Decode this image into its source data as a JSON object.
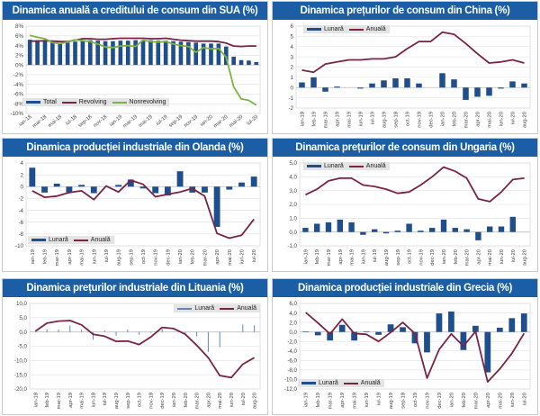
{
  "colors": {
    "title_bg": "#1b5ea6",
    "bar": "#1f4e8c",
    "annual": "#7b2346",
    "revolving": "#7b2346",
    "nonrevolving": "#7cb342",
    "thin_bar": "#5b87c5",
    "grid": "#d9d9d9"
  },
  "chart_data": [
    {
      "type": "bar+line",
      "title": "Dinamica anuală a creditului de consum din SUA (%)",
      "legend_position": "bottom-left",
      "ylim": [
        -10,
        8
      ],
      "yticks": [
        8,
        6,
        4,
        2,
        0,
        -2,
        -4,
        -6,
        -8,
        -10
      ],
      "ytick_labels": [
        "8%",
        "6%",
        "4%",
        "2%",
        "0%",
        "-2%",
        "-4%",
        "-6%",
        "-8%",
        "-10%"
      ],
      "label_step": 2,
      "x_label_rotation": "diagonal",
      "x_labels": [
        "ian-18",
        "mar-18",
        "mai-18",
        "iul-18",
        "sep-18",
        "nov-18",
        "ian-19",
        "mar-19",
        "mai-19",
        "iul-19",
        "sep-19",
        "nov-19",
        "ian-20",
        "mar-20",
        "mai-20",
        "iul-20"
      ],
      "series": [
        {
          "name": "Total",
          "kind": "bar",
          "color": "#1f4e8c",
          "values": [
            5.2,
            5.1,
            4.9,
            4.7,
            4.5,
            4.6,
            4.8,
            5.0,
            5.1,
            5.0,
            4.9,
            4.9,
            5.0,
            5.0,
            5.1,
            5.1,
            5.1,
            5.0,
            5.0,
            4.9,
            4.8,
            4.7,
            4.6,
            4.4,
            4.4,
            4.4,
            3.8,
            1.7,
            1.0,
            0.9,
            0.6
          ]
        },
        {
          "name": "Revolving",
          "kind": "line",
          "color": "#7b2346",
          "values": [
            4.9,
            4.9,
            5.0,
            4.9,
            4.8,
            4.8,
            5.1,
            5.4,
            5.4,
            5.3,
            5.3,
            5.4,
            5.5,
            5.5,
            5.5,
            5.5,
            5.4,
            5.4,
            5.5,
            5.3,
            5.1,
            5.0,
            4.9,
            4.9,
            4.9,
            4.8,
            4.5,
            3.9,
            3.8,
            3.9,
            3.9
          ]
        },
        {
          "name": "Nonrevolving",
          "kind": "line",
          "color": "#7cb342",
          "values": [
            6.1,
            5.7,
            5.4,
            4.6,
            4.4,
            4.7,
            5.2,
            5.0,
            4.8,
            4.3,
            3.7,
            3.6,
            3.9,
            4.0,
            3.8,
            5.1,
            4.8,
            4.7,
            4.8,
            4.3,
            4.0,
            3.8,
            2.6,
            3.6,
            3.3,
            3.4,
            1.6,
            -4.5,
            -7.0,
            -7.3,
            -8.3
          ]
        }
      ]
    },
    {
      "type": "bar+line",
      "title": "Dinamica prețurilor de consum din China (%)",
      "legend_position": "top-left",
      "ylim": [
        -2,
        6
      ],
      "yticks": [
        6,
        5,
        4,
        3,
        2,
        1,
        0,
        -1,
        -2
      ],
      "ytick_labels": [
        "6",
        "5",
        "4",
        "3",
        "2",
        "1",
        "0",
        "-1",
        "-2"
      ],
      "label_step": 1,
      "x_label_rotation": "vertical",
      "x_labels": [
        "ian-19",
        "feb-19",
        "mar-19",
        "apr-19",
        "mai-19",
        "iun-19",
        "iul-19",
        "aug-19",
        "sep-19",
        "oct-19",
        "nov-19",
        "dec-19",
        "ian-20",
        "feb-20",
        "mar-20",
        "apr-20",
        "mai-20",
        "iun-20",
        "iul-20",
        "aug-20"
      ],
      "series": [
        {
          "name": "Lunară",
          "kind": "bar",
          "color": "#1f4e8c",
          "values": [
            0.5,
            1.0,
            -0.4,
            0.1,
            0,
            -0.1,
            0.4,
            0.7,
            0.9,
            0.9,
            0.4,
            0,
            1.4,
            0.8,
            -1.2,
            -0.9,
            -0.8,
            -0.1,
            0.6,
            0.4
          ]
        },
        {
          "name": "Anuală",
          "kind": "line",
          "color": "#7b2346",
          "values": [
            1.7,
            1.5,
            2.3,
            2.5,
            2.7,
            2.7,
            2.8,
            2.8,
            3.0,
            3.8,
            4.5,
            4.5,
            5.4,
            5.2,
            4.3,
            3.3,
            2.4,
            2.5,
            2.7,
            2.4
          ]
        }
      ]
    },
    {
      "type": "bar+line",
      "title": "Dinamica producției industriale din Olanda (%)",
      "legend_position": "bottom-left",
      "ylim": [
        -10,
        4
      ],
      "yticks": [
        4,
        2,
        0,
        -2,
        -4,
        -6,
        -8,
        -10
      ],
      "ytick_labels": [
        "4",
        "2",
        "0",
        "-2",
        "-4",
        "-6",
        "-8",
        "-10"
      ],
      "label_step": 1,
      "x_label_rotation": "vertical",
      "x_labels": [
        "ian-19",
        "feb-19",
        "mar-19",
        "apr-19",
        "mai-19",
        "iun-19",
        "iul-19",
        "aug-19",
        "sep-19",
        "oct-19",
        "nov-19",
        "dec-19",
        "ian-20",
        "feb-20",
        "mar-20",
        "apr-20",
        "mai-20",
        "iun-20",
        "iul-20"
      ],
      "series": [
        {
          "name": "Lunară",
          "kind": "bar",
          "color": "#1f4e8c",
          "values": [
            3.2,
            -1.0,
            0.5,
            -1.0,
            0.3,
            -1.1,
            0,
            0.3,
            1.2,
            -0.3,
            -1.1,
            -1.5,
            2.6,
            -1.0,
            -1.0,
            -6.8,
            -0.5,
            0.7,
            1.7
          ]
        },
        {
          "name": "Anuală",
          "kind": "line",
          "color": "#7b2346",
          "values": [
            -0.7,
            -1.8,
            -1.6,
            -1.0,
            -0.7,
            -2.2,
            0.1,
            -0.9,
            1.1,
            0.4,
            -1.7,
            -1.3,
            -0.9,
            -0.3,
            -1.6,
            -7.9,
            -8.7,
            -8.2,
            -5.5
          ]
        }
      ]
    },
    {
      "type": "bar+line",
      "title": "Dinamica prețurilor de consum din Ungaria (%)",
      "legend_position": "top-left",
      "ylim": [
        -1,
        5
      ],
      "yticks": [
        5,
        4,
        3,
        2,
        1,
        0,
        -1
      ],
      "ytick_labels": [
        "5,0",
        "4,0",
        "3,0",
        "2,0",
        "1,0",
        "0,0",
        "-1,0"
      ],
      "label_step": 1,
      "x_label_rotation": "vertical",
      "x_labels": [
        "ian-19",
        "feb-19",
        "mar-19",
        "apr-19",
        "mai-19",
        "iun-19",
        "iul-19",
        "aug-19",
        "sep-19",
        "oct-19",
        "nov-19",
        "dec-19",
        "ian-20",
        "feb-20",
        "mar-20",
        "apr-20",
        "mai-20",
        "iun-20",
        "iul-20",
        "aug-20"
      ],
      "series": [
        {
          "name": "Lunară",
          "kind": "bar",
          "color": "#1f4e8c",
          "values": [
            0.3,
            0.6,
            0.7,
            0.9,
            0.7,
            -0.2,
            0.2,
            -0.1,
            0.1,
            0.6,
            0.1,
            0.3,
            0.9,
            0.3,
            0.2,
            -0.6,
            0.4,
            0.4,
            1.1,
            0
          ]
        },
        {
          "name": "Anuală",
          "kind": "line",
          "color": "#7b2346",
          "values": [
            2.7,
            3.1,
            3.7,
            3.9,
            3.9,
            3.4,
            3.3,
            3.1,
            2.8,
            2.9,
            3.4,
            4.0,
            4.7,
            4.4,
            3.9,
            2.4,
            2.2,
            2.9,
            3.8,
            3.9
          ]
        }
      ]
    },
    {
      "type": "bar+line",
      "title": "Dinamica prețurilor industriale din Lituania (%)",
      "legend_position": "top-right",
      "ylim": [
        -20,
        10
      ],
      "yticks": [
        10,
        5,
        0,
        -5,
        -10,
        -15,
        -20
      ],
      "ytick_labels": [
        "10,0",
        "5,0",
        "0,0",
        "-5,0",
        "-10,0",
        "-15,0",
        "-20,0"
      ],
      "label_step": 1,
      "x_label_rotation": "vertical",
      "x_labels": [
        "ian-19",
        "feb-19",
        "mar-19",
        "apr-19",
        "mai-19",
        "iun-19",
        "iul-19",
        "aug-19",
        "sep-19",
        "oct-19",
        "nov-19",
        "dec-19",
        "ian-20",
        "feb-20",
        "mar-20",
        "apr-20",
        "mai-20",
        "iun-20",
        "iul-20",
        "aug-20"
      ],
      "series": [
        {
          "name": "Lunară",
          "kind": "thinbar",
          "color": "#5b87c5",
          "values": [
            0.3,
            1.0,
            0.8,
            2.3,
            0.8,
            -2.7,
            0.5,
            -1.3,
            0.9,
            -1.0,
            -0.3,
            1.0,
            0,
            -0.5,
            -1.5,
            -7.0,
            -5.3,
            0,
            2.6,
            2.3
          ]
        },
        {
          "name": "Anuală",
          "kind": "line",
          "color": "#7b2346",
          "values": [
            0.3,
            3.1,
            3.8,
            4.0,
            2.5,
            -0.8,
            -1.5,
            -3.3,
            -3.2,
            -4.4,
            -1.8,
            1.6,
            1.2,
            -0.8,
            -4.7,
            -9.0,
            -15.3,
            -16.0,
            -11.3,
            -9.0
          ]
        }
      ]
    },
    {
      "type": "bar+line",
      "title": "Dinamica producției industriale din Grecia (%)",
      "legend_position": "bottom-left",
      "ylim": [
        -12,
        6
      ],
      "yticks": [
        6,
        4,
        2,
        0,
        -2,
        -4,
        -6,
        -8,
        -10,
        -12
      ],
      "ytick_labels": [
        "6,0",
        "4,0",
        "2,0",
        "0,0",
        "-2,0",
        "-4,0",
        "-6,0",
        "-8,0",
        "-10,0",
        "-12,0"
      ],
      "label_step": 1,
      "x_label_rotation": "vertical",
      "x_labels": [
        "ian-19",
        "feb-19",
        "mar-19",
        "apr-19",
        "mai-19",
        "iun-19",
        "iul-19",
        "aug-19",
        "sep-19",
        "oct-19",
        "nov-19",
        "dec-19",
        "ian-20",
        "feb-20",
        "mar-20",
        "apr-20",
        "mai-20",
        "iun-20",
        "iul-20"
      ],
      "series": [
        {
          "name": "Lunară",
          "kind": "bar",
          "color": "#1f4e8c",
          "values": [
            0.1,
            -0.7,
            -1.8,
            1.5,
            -1.8,
            0.1,
            -0.6,
            1.6,
            1.0,
            -2.4,
            -4.3,
            3.9,
            4.3,
            -3.8,
            1.3,
            -8.5,
            0.9,
            2.9,
            3.9
          ]
        },
        {
          "name": "Anuală",
          "kind": "line",
          "color": "#7b2346",
          "values": [
            4.1,
            1.9,
            -0.4,
            2.7,
            -0.3,
            -0.5,
            -2.0,
            -0.1,
            2.0,
            -0.3,
            -9.7,
            -3.7,
            -0.4,
            -3.0,
            0.1,
            -10.5,
            -7.8,
            -4.5,
            -0.3
          ]
        }
      ]
    }
  ]
}
